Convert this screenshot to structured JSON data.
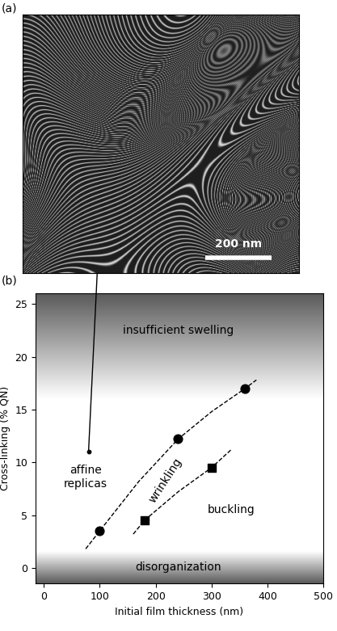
{
  "panel_labels": [
    "(a)",
    "(b)"
  ],
  "micrograph": {
    "scale_bar": "200 nm"
  },
  "chart_data": {
    "type": "scatter",
    "xlabel": "Initial film thickness (nm)",
    "ylabel": "Cross-linking (% QN)",
    "xlim": [
      -15,
      500
    ],
    "ylim": [
      -1.5,
      26
    ],
    "xticks": [
      0,
      100,
      200,
      300,
      400,
      500
    ],
    "yticks": [
      0,
      5,
      10,
      15,
      20,
      25
    ],
    "series": [
      {
        "marker": "o",
        "color": "#000000",
        "x": [
          100,
          240,
          360
        ],
        "y": [
          3.5,
          12.2,
          17
        ]
      },
      {
        "marker": "s",
        "color": "#000000",
        "x": [
          180,
          300
        ],
        "y": [
          4.5,
          9.5
        ]
      },
      {
        "marker": ".",
        "color": "#000000",
        "x": [
          80
        ],
        "y": [
          11
        ]
      }
    ],
    "lines": [
      {
        "line_style": "dashed",
        "color": "#000000",
        "x": [
          75,
          100,
          170,
          240,
          300,
          360,
          380
        ],
        "y": [
          1.8,
          3.5,
          8.2,
          12.2,
          14.8,
          17,
          17.8
        ]
      },
      {
        "line_style": "dashed",
        "color": "#000000",
        "x": [
          160,
          180,
          240,
          300,
          335
        ],
        "y": [
          3.2,
          4.5,
          7.2,
          9.5,
          11.2
        ]
      }
    ],
    "shaded": [
      [
        16,
        26
      ],
      [
        -1.5,
        1.5
      ]
    ],
    "annotations": [
      {
        "text": "insufficient swelling",
        "x": 240,
        "y": 22.5
      },
      {
        "text": "affine\nreplicas",
        "x": 75,
        "y": 8.6
      },
      {
        "text": "wrinkling",
        "x": 218,
        "y": 8.3
      },
      {
        "text": "buckling",
        "x": 335,
        "y": 5.5
      },
      {
        "text": "disorganization",
        "x": 240,
        "y": 0.1
      }
    ]
  }
}
